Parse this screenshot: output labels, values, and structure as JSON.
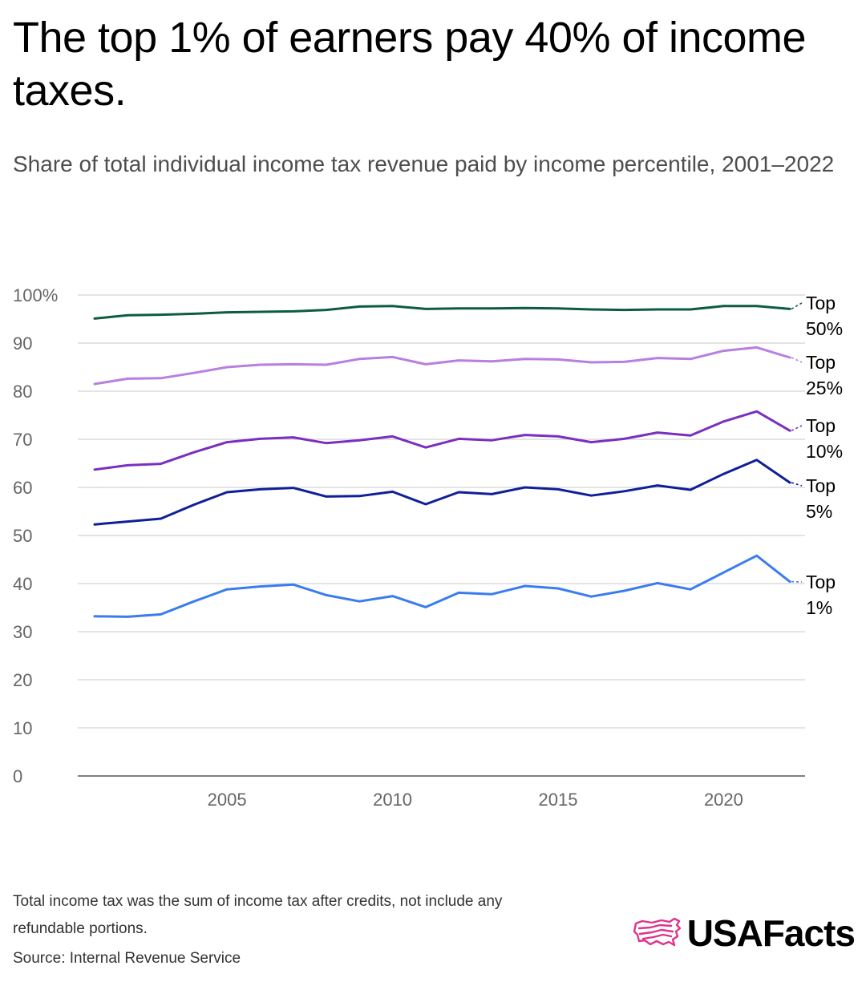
{
  "header": {
    "title": "The top 1% of earners pay 40% of income taxes.",
    "subtitle": "Share of total individual income tax revenue paid by income percentile, 2001–2022"
  },
  "footer": {
    "note": "Total income tax was the sum of income tax after credits, not include any refundable portions.",
    "source": "Source: Internal Revenue Service",
    "logo_text": "USAFacts",
    "logo_icon": "usafacts-flag-map-icon",
    "logo_color": "#e0338c"
  },
  "chart_data": {
    "type": "line",
    "title": "The top 1% of earners pay 40% of income taxes.",
    "subtitle": "Share of total individual income tax revenue paid by income percentile, 2001–2022",
    "xlabel": "",
    "ylabel": "",
    "x": [
      2001,
      2002,
      2003,
      2004,
      2005,
      2006,
      2007,
      2008,
      2009,
      2010,
      2011,
      2012,
      2013,
      2014,
      2015,
      2016,
      2017,
      2018,
      2019,
      2020,
      2021,
      2022
    ],
    "xlim": [
      2001,
      2022
    ],
    "ylim": [
      0,
      100
    ],
    "x_ticks": [
      2005,
      2010,
      2015,
      2020
    ],
    "y_ticks": [
      0,
      10,
      20,
      30,
      40,
      50,
      60,
      70,
      80,
      90,
      100
    ],
    "y_tick_labels": [
      "0",
      "10",
      "20",
      "30",
      "40",
      "50",
      "60",
      "70",
      "80",
      "90",
      "100%"
    ],
    "grid": "horizontal",
    "legend": "direct labels at line ends (right)",
    "series": [
      {
        "name": "Top 50%",
        "label_lines": [
          "Top",
          "50%"
        ],
        "color": "#0d5c3f",
        "values": [
          95.1,
          95.8,
          95.9,
          96.1,
          96.4,
          96.5,
          96.6,
          96.9,
          97.6,
          97.7,
          97.1,
          97.2,
          97.2,
          97.3,
          97.2,
          97.0,
          96.9,
          97.0,
          97.0,
          97.7,
          97.7,
          97.1
        ]
      },
      {
        "name": "Top 25%",
        "label_lines": [
          "Top",
          "25%"
        ],
        "color": "#b87fe0",
        "values": [
          81.5,
          82.6,
          82.7,
          83.8,
          85.0,
          85.5,
          85.6,
          85.5,
          86.7,
          87.1,
          85.6,
          86.4,
          86.2,
          86.7,
          86.6,
          86.0,
          86.1,
          86.9,
          86.7,
          88.4,
          89.1,
          87.0
        ]
      },
      {
        "name": "Top 10%",
        "label_lines": [
          "Top",
          "10%"
        ],
        "color": "#7b2fbf",
        "values": [
          63.7,
          64.6,
          64.9,
          67.3,
          69.4,
          70.1,
          70.4,
          69.2,
          69.8,
          70.6,
          68.3,
          70.1,
          69.8,
          70.9,
          70.6,
          69.4,
          70.1,
          71.4,
          70.8,
          73.7,
          75.8,
          71.8
        ]
      },
      {
        "name": "Top 5%",
        "label_lines": [
          "Top",
          "5%"
        ],
        "color": "#0f1f99",
        "values": [
          52.3,
          52.9,
          53.5,
          56.4,
          59.0,
          59.6,
          59.9,
          58.1,
          58.2,
          59.1,
          56.5,
          59.0,
          58.6,
          60.0,
          59.6,
          58.3,
          59.2,
          60.4,
          59.5,
          62.8,
          65.7,
          61.0
        ]
      },
      {
        "name": "Top 1%",
        "label_lines": [
          "Top",
          "1%"
        ],
        "color": "#3a7cf0",
        "values": [
          33.2,
          33.1,
          33.6,
          36.3,
          38.8,
          39.4,
          39.8,
          37.6,
          36.3,
          37.4,
          35.1,
          38.1,
          37.8,
          39.5,
          39.0,
          37.3,
          38.5,
          40.1,
          38.8,
          42.3,
          45.8,
          40.4
        ]
      }
    ]
  }
}
